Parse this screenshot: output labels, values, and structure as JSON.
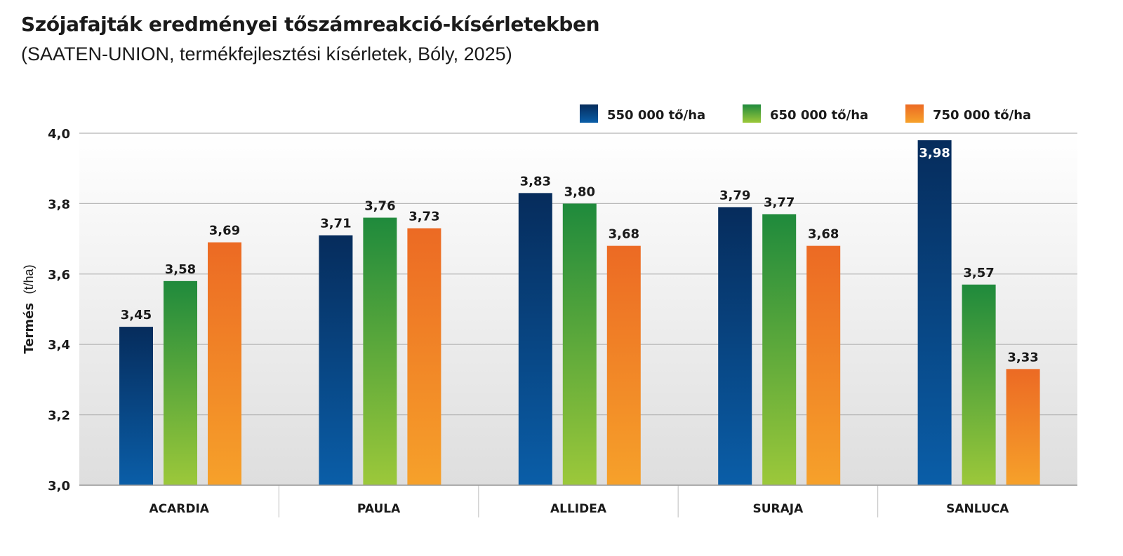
{
  "chart_data": {
    "type": "bar",
    "title": "Szójafajták eredményei tőszámreakció-kísérletekben",
    "subtitle": "(SAATEN-UNION, termékfejlesztési kísérletek, Bóly, 2025)",
    "ylabel": "Termés",
    "ylabel_unit": "(t/ha)",
    "xlabel": "",
    "ylim": [
      3.0,
      4.0
    ],
    "yticks": [
      3.0,
      3.2,
      3.4,
      3.6,
      3.8,
      4.0
    ],
    "ytick_labels": [
      "3,0",
      "3,2",
      "3,4",
      "3,6",
      "3,8",
      "4,0"
    ],
    "categories": [
      "ACARDIA",
      "PAULA",
      "ALLIDEA",
      "SURAJA",
      "SANLUCA"
    ],
    "legend_position": "top-right",
    "grid": true,
    "series": [
      {
        "name": "550 000 tő/ha",
        "values": [
          3.45,
          3.71,
          3.83,
          3.79,
          3.98
        ],
        "labels": [
          "3,45",
          "3,71",
          "3,83",
          "3,79",
          "3,98"
        ],
        "color_top": "#062c5c",
        "color_bottom": "#0a5ea8"
      },
      {
        "name": "650 000 tő/ha",
        "values": [
          3.58,
          3.76,
          3.8,
          3.77,
          3.57
        ],
        "labels": [
          "3,58",
          "3,76",
          "3,80",
          "3,77",
          "3,57"
        ],
        "color_top": "#1f8a3c",
        "color_bottom": "#9cc83a"
      },
      {
        "name": "750 000 tő/ha",
        "values": [
          3.69,
          3.73,
          3.68,
          3.68,
          3.33
        ],
        "labels": [
          "3,69",
          "3,73",
          "3,68",
          "3,68",
          "3,33"
        ],
        "color_top": "#ec6a24",
        "color_bottom": "#f6a12a"
      }
    ]
  }
}
